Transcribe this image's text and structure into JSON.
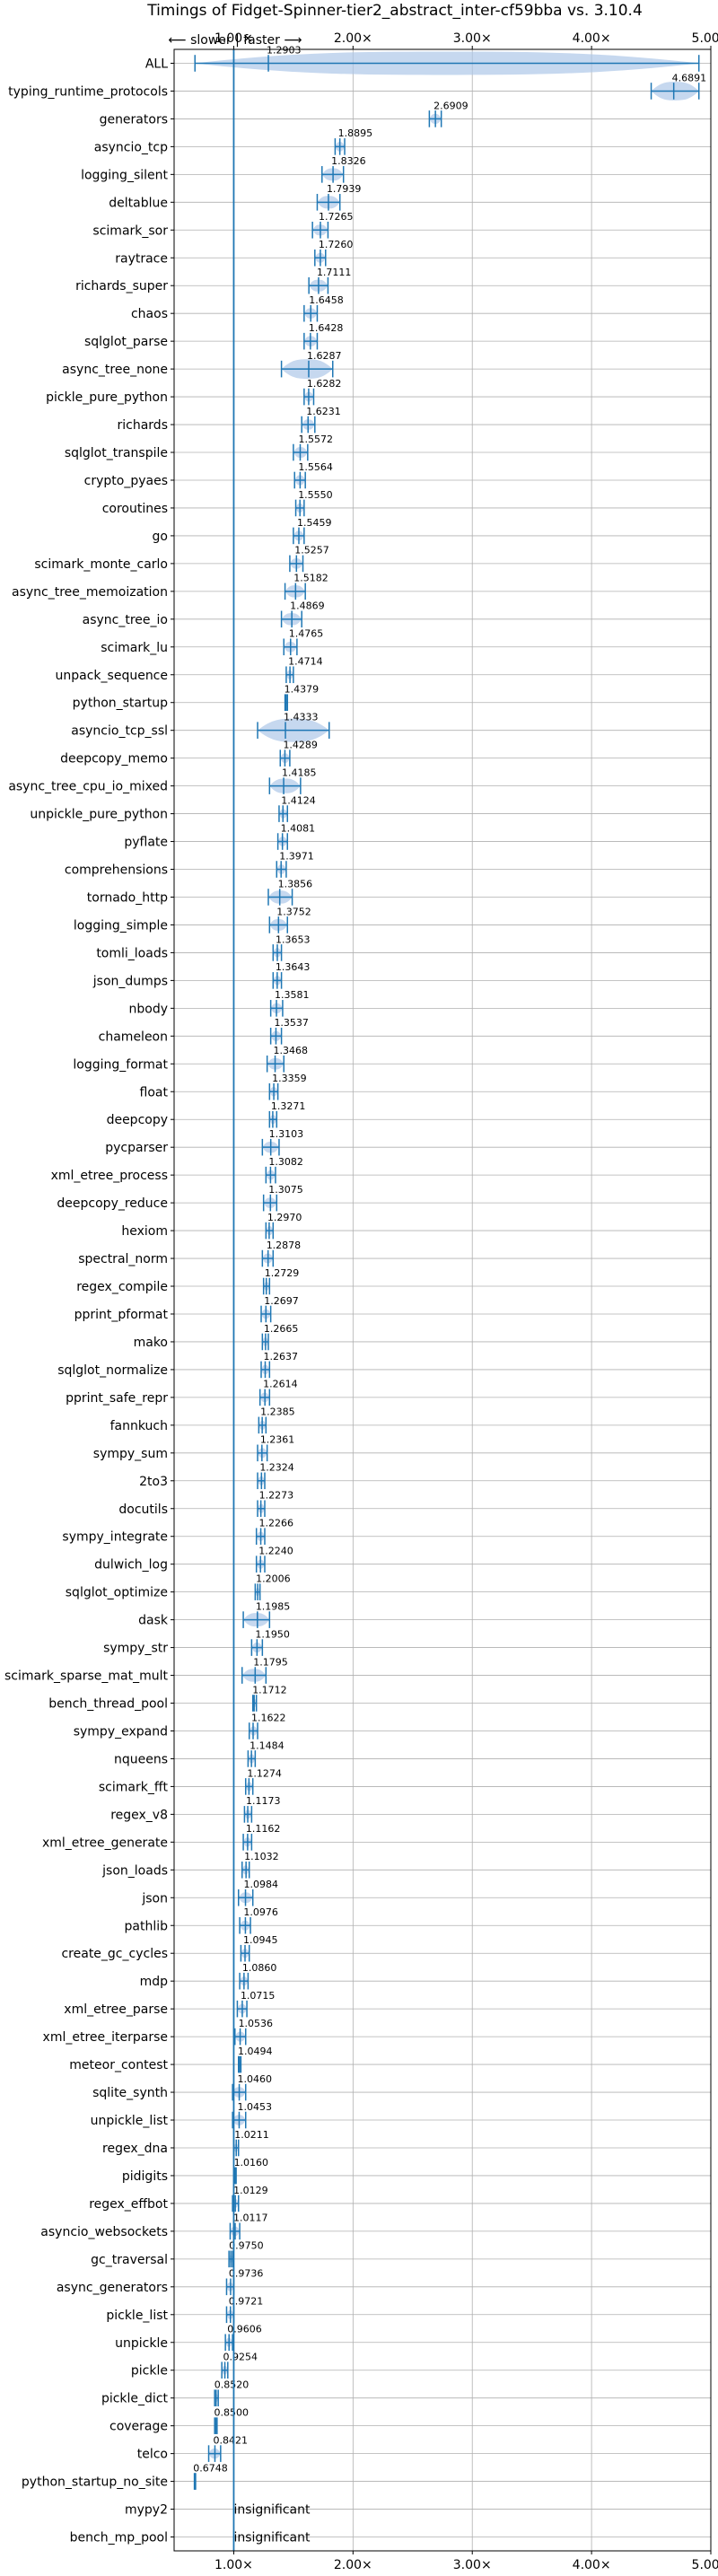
{
  "chart_data": {
    "type": "violin",
    "title": "Timings of Fidget-Spinner-tier2_abstract_inter-cf59bba vs. 3.10.4",
    "direction_label": "⟵ slower | faster ⟶",
    "xlim": [
      0.5,
      5.0
    ],
    "xticks": [
      1.0,
      2.0,
      3.0,
      4.0,
      5.0
    ],
    "xtick_labels": [
      "1.00×",
      "2.00×",
      "3.00×",
      "4.00×",
      "5.00×"
    ],
    "reference_line": 1.0,
    "grid": true,
    "benchmarks": [
      {
        "name": "ALL",
        "value": 1.2903,
        "min": 0.6748,
        "max": 4.9,
        "label": "1.2903"
      },
      {
        "name": "typing_runtime_protocols",
        "value": 4.6891,
        "min": 4.5,
        "max": 4.9,
        "label": "4.6891"
      },
      {
        "name": "generators",
        "value": 2.6909,
        "min": 2.64,
        "max": 2.74,
        "label": "2.6909",
        "significant_color": "#d62728"
      },
      {
        "name": "asyncio_tcp",
        "value": 1.8895,
        "min": 1.85,
        "max": 1.93,
        "label": "1.8895"
      },
      {
        "name": "logging_silent",
        "value": 1.8326,
        "min": 1.74,
        "max": 1.92,
        "label": "1.8326"
      },
      {
        "name": "deltablue",
        "value": 1.7939,
        "min": 1.7,
        "max": 1.89,
        "label": "1.7939",
        "significant_color": "#d62728"
      },
      {
        "name": "scimark_sor",
        "value": 1.7265,
        "min": 1.66,
        "max": 1.79,
        "label": "1.7265"
      },
      {
        "name": "raytrace",
        "value": 1.726,
        "min": 1.68,
        "max": 1.77,
        "label": "1.7260"
      },
      {
        "name": "richards_super",
        "value": 1.7111,
        "min": 1.63,
        "max": 1.79,
        "label": "1.7111",
        "significant_color": "#d62728"
      },
      {
        "name": "chaos",
        "value": 1.6458,
        "min": 1.59,
        "max": 1.7,
        "label": "1.6458"
      },
      {
        "name": "sqlglot_parse",
        "value": 1.6428,
        "min": 1.59,
        "max": 1.7,
        "label": "1.6428"
      },
      {
        "name": "async_tree_none",
        "value": 1.6287,
        "min": 1.4,
        "max": 1.83,
        "label": "1.6287"
      },
      {
        "name": "pickle_pure_python",
        "value": 1.6282,
        "min": 1.59,
        "max": 1.67,
        "label": "1.6282"
      },
      {
        "name": "richards",
        "value": 1.6231,
        "min": 1.57,
        "max": 1.68,
        "label": "1.6231",
        "significant_color": "#d62728"
      },
      {
        "name": "sqlglot_transpile",
        "value": 1.5572,
        "min": 1.5,
        "max": 1.62,
        "label": "1.5572"
      },
      {
        "name": "crypto_pyaes",
        "value": 1.5564,
        "min": 1.51,
        "max": 1.6,
        "label": "1.5564"
      },
      {
        "name": "coroutines",
        "value": 1.555,
        "min": 1.52,
        "max": 1.59,
        "label": "1.5550"
      },
      {
        "name": "go",
        "value": 1.5459,
        "min": 1.5,
        "max": 1.59,
        "label": "1.5459"
      },
      {
        "name": "scimark_monte_carlo",
        "value": 1.5257,
        "min": 1.47,
        "max": 1.58,
        "label": "1.5257"
      },
      {
        "name": "async_tree_memoization",
        "value": 1.5182,
        "min": 1.43,
        "max": 1.6,
        "label": "1.5182"
      },
      {
        "name": "async_tree_io",
        "value": 1.4869,
        "min": 1.4,
        "max": 1.57,
        "label": "1.4869"
      },
      {
        "name": "scimark_lu",
        "value": 1.4765,
        "min": 1.42,
        "max": 1.53,
        "label": "1.4765"
      },
      {
        "name": "unpack_sequence",
        "value": 1.4714,
        "min": 1.44,
        "max": 1.5,
        "label": "1.4714"
      },
      {
        "name": "python_startup",
        "value": 1.4379,
        "min": 1.43,
        "max": 1.45,
        "label": "1.4379"
      },
      {
        "name": "asyncio_tcp_ssl",
        "value": 1.4333,
        "min": 1.2,
        "max": 1.8,
        "label": "1.4333"
      },
      {
        "name": "deepcopy_memo",
        "value": 1.4289,
        "min": 1.39,
        "max": 1.47,
        "label": "1.4289"
      },
      {
        "name": "async_tree_cpu_io_mixed",
        "value": 1.4185,
        "min": 1.3,
        "max": 1.56,
        "label": "1.4185"
      },
      {
        "name": "unpickle_pure_python",
        "value": 1.4124,
        "min": 1.38,
        "max": 1.45,
        "label": "1.4124"
      },
      {
        "name": "pyflate",
        "value": 1.4081,
        "min": 1.37,
        "max": 1.45,
        "label": "1.4081"
      },
      {
        "name": "comprehensions",
        "value": 1.3971,
        "min": 1.36,
        "max": 1.44,
        "label": "1.3971"
      },
      {
        "name": "tornado_http",
        "value": 1.3856,
        "min": 1.29,
        "max": 1.49,
        "label": "1.3856"
      },
      {
        "name": "logging_simple",
        "value": 1.3752,
        "min": 1.3,
        "max": 1.45,
        "label": "1.3752"
      },
      {
        "name": "tomli_loads",
        "value": 1.3653,
        "min": 1.33,
        "max": 1.4,
        "label": "1.3653"
      },
      {
        "name": "json_dumps",
        "value": 1.3643,
        "min": 1.33,
        "max": 1.4,
        "label": "1.3643"
      },
      {
        "name": "nbody",
        "value": 1.3581,
        "min": 1.31,
        "max": 1.41,
        "label": "1.3581"
      },
      {
        "name": "chameleon",
        "value": 1.3537,
        "min": 1.31,
        "max": 1.4,
        "label": "1.3537"
      },
      {
        "name": "logging_format",
        "value": 1.3468,
        "min": 1.28,
        "max": 1.42,
        "label": "1.3468"
      },
      {
        "name": "float",
        "value": 1.3359,
        "min": 1.3,
        "max": 1.37,
        "label": "1.3359"
      },
      {
        "name": "deepcopy",
        "value": 1.3271,
        "min": 1.3,
        "max": 1.36,
        "label": "1.3271"
      },
      {
        "name": "pycparser",
        "value": 1.3103,
        "min": 1.24,
        "max": 1.38,
        "label": "1.3103"
      },
      {
        "name": "xml_etree_process",
        "value": 1.3082,
        "min": 1.27,
        "max": 1.35,
        "label": "1.3082"
      },
      {
        "name": "deepcopy_reduce",
        "value": 1.3075,
        "min": 1.25,
        "max": 1.36,
        "label": "1.3075"
      },
      {
        "name": "hexiom",
        "value": 1.297,
        "min": 1.27,
        "max": 1.33,
        "label": "1.2970"
      },
      {
        "name": "spectral_norm",
        "value": 1.2878,
        "min": 1.24,
        "max": 1.33,
        "label": "1.2878"
      },
      {
        "name": "regex_compile",
        "value": 1.2729,
        "min": 1.25,
        "max": 1.3,
        "label": "1.2729"
      },
      {
        "name": "pprint_pformat",
        "value": 1.2697,
        "min": 1.23,
        "max": 1.31,
        "label": "1.2697"
      },
      {
        "name": "mako",
        "value": 1.2665,
        "min": 1.24,
        "max": 1.29,
        "label": "1.2665"
      },
      {
        "name": "sqlglot_normalize",
        "value": 1.2637,
        "min": 1.23,
        "max": 1.3,
        "label": "1.2637"
      },
      {
        "name": "pprint_safe_repr",
        "value": 1.2614,
        "min": 1.22,
        "max": 1.3,
        "label": "1.2614"
      },
      {
        "name": "fannkuch",
        "value": 1.2385,
        "min": 1.21,
        "max": 1.27,
        "label": "1.2385"
      },
      {
        "name": "sympy_sum",
        "value": 1.2361,
        "min": 1.2,
        "max": 1.28,
        "label": "1.2361"
      },
      {
        "name": "2to3",
        "value": 1.2324,
        "min": 1.2,
        "max": 1.26,
        "label": "1.2324"
      },
      {
        "name": "docutils",
        "value": 1.2273,
        "min": 1.2,
        "max": 1.26,
        "label": "1.2273"
      },
      {
        "name": "sympy_integrate",
        "value": 1.2266,
        "min": 1.19,
        "max": 1.26,
        "label": "1.2266"
      },
      {
        "name": "dulwich_log",
        "value": 1.224,
        "min": 1.19,
        "max": 1.26,
        "label": "1.2240"
      },
      {
        "name": "sqlglot_optimize",
        "value": 1.2006,
        "min": 1.18,
        "max": 1.22,
        "label": "1.2006"
      },
      {
        "name": "dask",
        "value": 1.1985,
        "min": 1.08,
        "max": 1.3,
        "label": "1.1985"
      },
      {
        "name": "sympy_str",
        "value": 1.195,
        "min": 1.15,
        "max": 1.24,
        "label": "1.1950"
      },
      {
        "name": "scimark_sparse_mat_mult",
        "value": 1.1795,
        "min": 1.07,
        "max": 1.27,
        "label": "1.1795"
      },
      {
        "name": "bench_thread_pool",
        "value": 1.1712,
        "min": 1.16,
        "max": 1.19,
        "label": "1.1712"
      },
      {
        "name": "sympy_expand",
        "value": 1.1622,
        "min": 1.13,
        "max": 1.2,
        "label": "1.1622"
      },
      {
        "name": "nqueens",
        "value": 1.1484,
        "min": 1.12,
        "max": 1.18,
        "label": "1.1484"
      },
      {
        "name": "scimark_fft",
        "value": 1.1274,
        "min": 1.1,
        "max": 1.16,
        "label": "1.1274"
      },
      {
        "name": "regex_v8",
        "value": 1.1173,
        "min": 1.09,
        "max": 1.15,
        "label": "1.1173"
      },
      {
        "name": "xml_etree_generate",
        "value": 1.1162,
        "min": 1.08,
        "max": 1.15,
        "label": "1.1162"
      },
      {
        "name": "json_loads",
        "value": 1.1032,
        "min": 1.07,
        "max": 1.13,
        "label": "1.1032"
      },
      {
        "name": "json",
        "value": 1.0984,
        "min": 1.04,
        "max": 1.16,
        "label": "1.0984"
      },
      {
        "name": "pathlib",
        "value": 1.0976,
        "min": 1.05,
        "max": 1.14,
        "label": "1.0976"
      },
      {
        "name": "create_gc_cycles",
        "value": 1.0945,
        "min": 1.06,
        "max": 1.13,
        "label": "1.0945"
      },
      {
        "name": "mdp",
        "value": 1.086,
        "min": 1.05,
        "max": 1.12,
        "label": "1.0860"
      },
      {
        "name": "xml_etree_parse",
        "value": 1.0715,
        "min": 1.03,
        "max": 1.11,
        "label": "1.0715"
      },
      {
        "name": "xml_etree_iterparse",
        "value": 1.0536,
        "min": 1.01,
        "max": 1.1,
        "label": "1.0536"
      },
      {
        "name": "meteor_contest",
        "value": 1.0494,
        "min": 1.04,
        "max": 1.06,
        "label": "1.0494"
      },
      {
        "name": "sqlite_synth",
        "value": 1.046,
        "min": 0.99,
        "max": 1.1,
        "label": "1.0460"
      },
      {
        "name": "unpickle_list",
        "value": 1.0453,
        "min": 0.99,
        "max": 1.1,
        "label": "1.0453"
      },
      {
        "name": "regex_dna",
        "value": 1.0211,
        "min": 1.0,
        "max": 1.04,
        "label": "1.0211"
      },
      {
        "name": "pidigits",
        "value": 1.016,
        "min": 1.01,
        "max": 1.02,
        "label": "1.0160"
      },
      {
        "name": "regex_effbot",
        "value": 1.0129,
        "min": 0.99,
        "max": 1.04,
        "label": "1.0129"
      },
      {
        "name": "asyncio_websockets",
        "value": 1.0117,
        "min": 0.97,
        "max": 1.05,
        "label": "1.0117"
      },
      {
        "name": "gc_traversal",
        "value": 0.975,
        "min": 0.96,
        "max": 0.99,
        "label": "0.9750"
      },
      {
        "name": "async_generators",
        "value": 0.9736,
        "min": 0.94,
        "max": 1.0,
        "label": "0.9736"
      },
      {
        "name": "pickle_list",
        "value": 0.9721,
        "min": 0.94,
        "max": 1.0,
        "label": "0.9721"
      },
      {
        "name": "unpickle",
        "value": 0.9606,
        "min": 0.93,
        "max": 0.99,
        "label": "0.9606"
      },
      {
        "name": "pickle",
        "value": 0.9254,
        "min": 0.9,
        "max": 0.95,
        "label": "0.9254"
      },
      {
        "name": "pickle_dict",
        "value": 0.852,
        "min": 0.84,
        "max": 0.87,
        "label": "0.8520"
      },
      {
        "name": "coverage",
        "value": 0.85,
        "min": 0.84,
        "max": 0.86,
        "label": "0.8500"
      },
      {
        "name": "telco",
        "value": 0.8421,
        "min": 0.79,
        "max": 0.89,
        "label": "0.8421"
      },
      {
        "name": "python_startup_no_site",
        "value": 0.6748,
        "min": 0.67,
        "max": 0.68,
        "label": "0.6748"
      },
      {
        "name": "mypy2",
        "value": null,
        "label": "insignificant"
      },
      {
        "name": "bench_mp_pool",
        "value": null,
        "label": "insignificant"
      }
    ]
  },
  "colors": {
    "violin": "#1f77b4",
    "violin_fill": "#aec7e8",
    "significant": "#d62728",
    "grid": "#b0b0b0",
    "axis": "#000000"
  }
}
